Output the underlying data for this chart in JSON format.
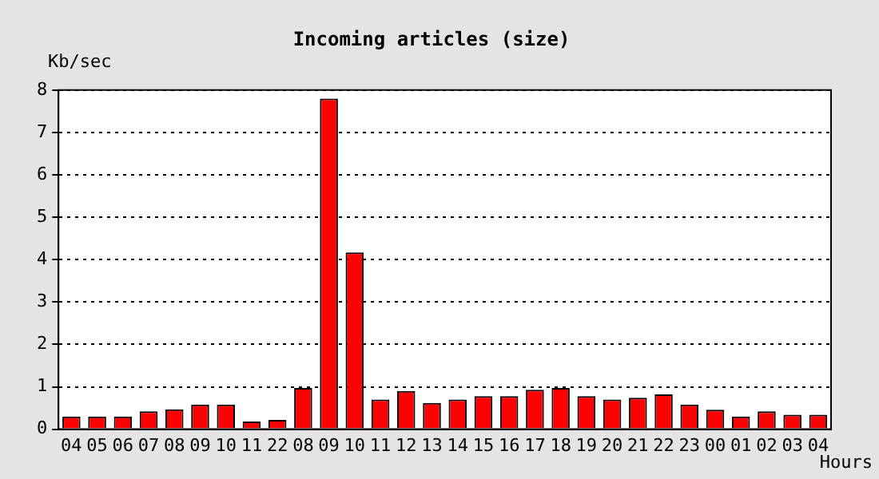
{
  "chart_data": {
    "type": "bar",
    "title": "Incoming articles (size)",
    "ylabel": "Kb/sec",
    "xlabel": "Hours",
    "categories": [
      "04",
      "05",
      "06",
      "07",
      "08",
      "09",
      "10",
      "11",
      "22",
      "08",
      "09",
      "10",
      "11",
      "12",
      "13",
      "14",
      "15",
      "16",
      "17",
      "18",
      "19",
      "20",
      "21",
      "22",
      "23",
      "00",
      "01",
      "02",
      "03",
      "04"
    ],
    "values": [
      0.3,
      0.3,
      0.3,
      0.42,
      0.47,
      0.58,
      0.58,
      0.18,
      0.22,
      0.97,
      7.8,
      4.17,
      0.7,
      0.9,
      0.62,
      0.7,
      0.78,
      0.78,
      0.93,
      0.97,
      0.78,
      0.7,
      0.74,
      0.82,
      0.58,
      0.46,
      0.3,
      0.42,
      0.34,
      0.34
    ],
    "color": "#ff0000",
    "ylim": [
      0,
      8
    ],
    "yticks": [
      0,
      1,
      2,
      3,
      4,
      5,
      6,
      7,
      8
    ],
    "grid": "y",
    "legend": false
  }
}
